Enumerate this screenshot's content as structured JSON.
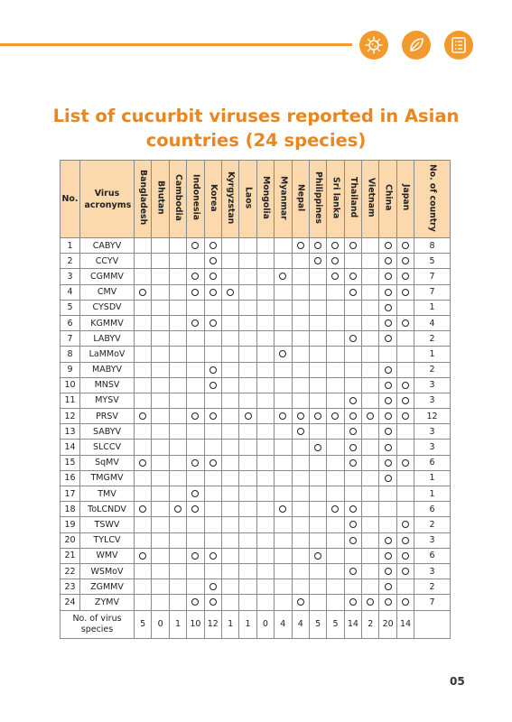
{
  "page": {
    "title_line1": "List of cucurbit viruses reported in Asian",
    "title_line2": "countries (24 species)",
    "page_number": "05",
    "accent_color": "#f39a2e",
    "header_fill": "#fcd9ad"
  },
  "header_icons": [
    "virus-icon",
    "leaf-icon",
    "checklist-icon"
  ],
  "table": {
    "col_no": "No.",
    "col_virus": "Virus acronyms",
    "countries": [
      "Bangladesh",
      "Bhutan",
      "Cambodia",
      "Indonesia",
      "Korea",
      "Kyrgyzstan",
      "Laos",
      "Mongolia",
      "Myanmar",
      "Nepal",
      "Philippines",
      "Sri lanka",
      "Thailand",
      "Vietnam",
      "China",
      "Japan"
    ],
    "col_total": "No. of country",
    "rows": [
      {
        "no": "1",
        "virus": "CABYV",
        "marks": [
          0,
          0,
          0,
          1,
          1,
          0,
          0,
          0,
          0,
          1,
          1,
          1,
          1,
          0,
          1,
          1
        ],
        "total": "8"
      },
      {
        "no": "2",
        "virus": "CCYV",
        "marks": [
          0,
          0,
          0,
          0,
          1,
          0,
          0,
          0,
          0,
          0,
          1,
          1,
          0,
          0,
          1,
          1
        ],
        "total": "5"
      },
      {
        "no": "3",
        "virus": "CGMMV",
        "marks": [
          0,
          0,
          0,
          1,
          1,
          0,
          0,
          0,
          1,
          0,
          0,
          1,
          1,
          0,
          1,
          1
        ],
        "total": "7"
      },
      {
        "no": "4",
        "virus": "CMV",
        "marks": [
          1,
          0,
          0,
          1,
          1,
          1,
          0,
          0,
          0,
          0,
          0,
          0,
          1,
          0,
          1,
          1
        ],
        "total": "7"
      },
      {
        "no": "5",
        "virus": "CYSDV",
        "marks": [
          0,
          0,
          0,
          0,
          0,
          0,
          0,
          0,
          0,
          0,
          0,
          0,
          0,
          0,
          1,
          0
        ],
        "total": "1"
      },
      {
        "no": "6",
        "virus": "KGMMV",
        "marks": [
          0,
          0,
          0,
          1,
          1,
          0,
          0,
          0,
          0,
          0,
          0,
          0,
          0,
          0,
          1,
          1
        ],
        "total": "4"
      },
      {
        "no": "7",
        "virus": "LABYV",
        "marks": [
          0,
          0,
          0,
          0,
          0,
          0,
          0,
          0,
          0,
          0,
          0,
          0,
          1,
          0,
          1,
          0
        ],
        "total": "2"
      },
      {
        "no": "8",
        "virus": "LaMMoV",
        "marks": [
          0,
          0,
          0,
          0,
          0,
          0,
          0,
          0,
          1,
          0,
          0,
          0,
          0,
          0,
          0,
          0
        ],
        "total": "1"
      },
      {
        "no": "9",
        "virus": "MABYV",
        "marks": [
          0,
          0,
          0,
          0,
          1,
          0,
          0,
          0,
          0,
          0,
          0,
          0,
          0,
          0,
          1,
          0
        ],
        "total": "2"
      },
      {
        "no": "10",
        "virus": "MNSV",
        "marks": [
          0,
          0,
          0,
          0,
          1,
          0,
          0,
          0,
          0,
          0,
          0,
          0,
          0,
          0,
          1,
          1
        ],
        "total": "3"
      },
      {
        "no": "11",
        "virus": "MYSV",
        "marks": [
          0,
          0,
          0,
          0,
          0,
          0,
          0,
          0,
          0,
          0,
          0,
          0,
          1,
          0,
          1,
          1
        ],
        "total": "3"
      },
      {
        "no": "12",
        "virus": "PRSV",
        "marks": [
          1,
          0,
          0,
          1,
          1,
          0,
          1,
          0,
          1,
          1,
          1,
          1,
          1,
          1,
          1,
          1
        ],
        "total": "12"
      },
      {
        "no": "13",
        "virus": "SABYV",
        "marks": [
          0,
          0,
          0,
          0,
          0,
          0,
          0,
          0,
          0,
          1,
          0,
          0,
          1,
          0,
          1,
          0
        ],
        "total": "3"
      },
      {
        "no": "14",
        "virus": "SLCCV",
        "marks": [
          0,
          0,
          0,
          0,
          0,
          0,
          0,
          0,
          0,
          0,
          1,
          0,
          1,
          0,
          1,
          0
        ],
        "total": "3"
      },
      {
        "no": "15",
        "virus": "SqMV",
        "marks": [
          1,
          0,
          0,
          1,
          1,
          0,
          0,
          0,
          0,
          0,
          0,
          0,
          1,
          0,
          1,
          1
        ],
        "total": "6"
      },
      {
        "no": "16",
        "virus": "TMGMV",
        "marks": [
          0,
          0,
          0,
          0,
          0,
          0,
          0,
          0,
          0,
          0,
          0,
          0,
          0,
          0,
          1,
          0
        ],
        "total": "1"
      },
      {
        "no": "17",
        "virus": "TMV",
        "marks": [
          0,
          0,
          0,
          1,
          0,
          0,
          0,
          0,
          0,
          0,
          0,
          0,
          0,
          0,
          0,
          0
        ],
        "total": "1"
      },
      {
        "no": "18",
        "virus": "ToLCNDV",
        "marks": [
          1,
          0,
          1,
          1,
          0,
          0,
          0,
          0,
          1,
          0,
          0,
          1,
          1,
          0,
          0,
          0
        ],
        "total": "6"
      },
      {
        "no": "19",
        "virus": "TSWV",
        "marks": [
          0,
          0,
          0,
          0,
          0,
          0,
          0,
          0,
          0,
          0,
          0,
          0,
          1,
          0,
          0,
          1
        ],
        "total": "2"
      },
      {
        "no": "20",
        "virus": "TYLCV",
        "marks": [
          0,
          0,
          0,
          0,
          0,
          0,
          0,
          0,
          0,
          0,
          0,
          0,
          1,
          0,
          1,
          1
        ],
        "total": "3"
      },
      {
        "no": "21",
        "virus": "WMV",
        "marks": [
          1,
          0,
          0,
          1,
          1,
          0,
          0,
          0,
          0,
          0,
          1,
          0,
          0,
          0,
          1,
          1
        ],
        "total": "6"
      },
      {
        "no": "22",
        "virus": "WSMoV",
        "marks": [
          0,
          0,
          0,
          0,
          0,
          0,
          0,
          0,
          0,
          0,
          0,
          0,
          1,
          0,
          1,
          1
        ],
        "total": "3"
      },
      {
        "no": "23",
        "virus": "ZGMMV",
        "marks": [
          0,
          0,
          0,
          0,
          1,
          0,
          0,
          0,
          0,
          0,
          0,
          0,
          0,
          0,
          1,
          0
        ],
        "total": "2"
      },
      {
        "no": "24",
        "virus": "ZYMV",
        "marks": [
          0,
          0,
          0,
          1,
          1,
          0,
          0,
          0,
          0,
          1,
          0,
          0,
          1,
          1,
          1,
          1
        ],
        "total": "7"
      }
    ],
    "footer_label": "No. of virus species",
    "footer_values": [
      "5",
      "0",
      "1",
      "10",
      "12",
      "1",
      "1",
      "0",
      "4",
      "4",
      "5",
      "5",
      "14",
      "2",
      "20",
      "14"
    ]
  }
}
